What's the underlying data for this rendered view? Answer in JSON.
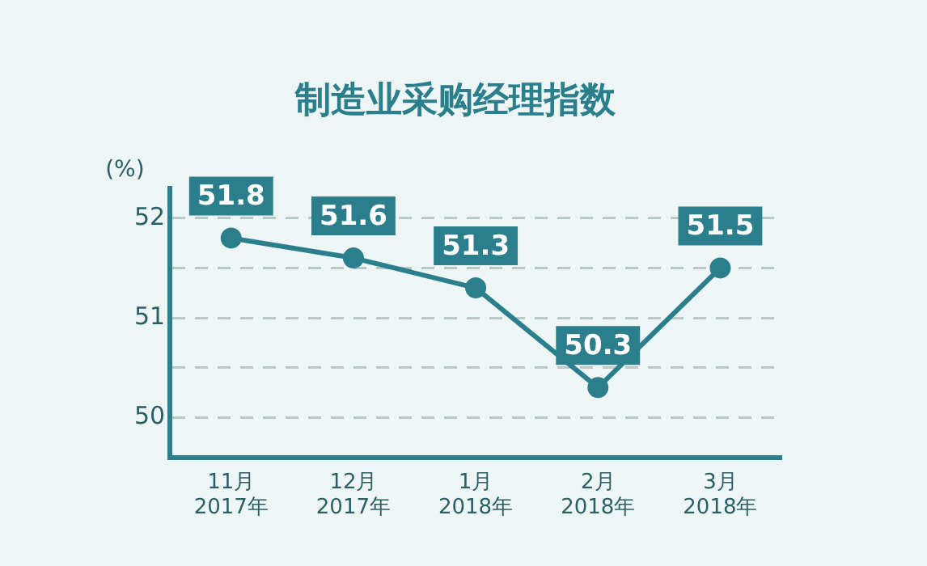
{
  "chart_data": {
    "type": "line",
    "title": "制造业采购经理指数",
    "ylabel": "(%)",
    "categories": [
      "11月\n2017年",
      "12月\n2017年",
      "1月\n2018年",
      "2月\n2018年",
      "3月\n2018年"
    ],
    "series": [
      {
        "color": "#2b7f8c",
        "values": [
          51.8,
          51.6,
          51.3,
          50.3,
          51.5
        ]
      }
    ],
    "ylim": [
      49.6,
      52.3
    ],
    "yticks": [
      50,
      {
        "value": 50.5,
        "label": null
      },
      51,
      {
        "value": 51.5,
        "label": null
      },
      52
    ],
    "grid": "y",
    "line_style": "solid",
    "marker": "circle",
    "data_labels": true,
    "legend": false
  }
}
